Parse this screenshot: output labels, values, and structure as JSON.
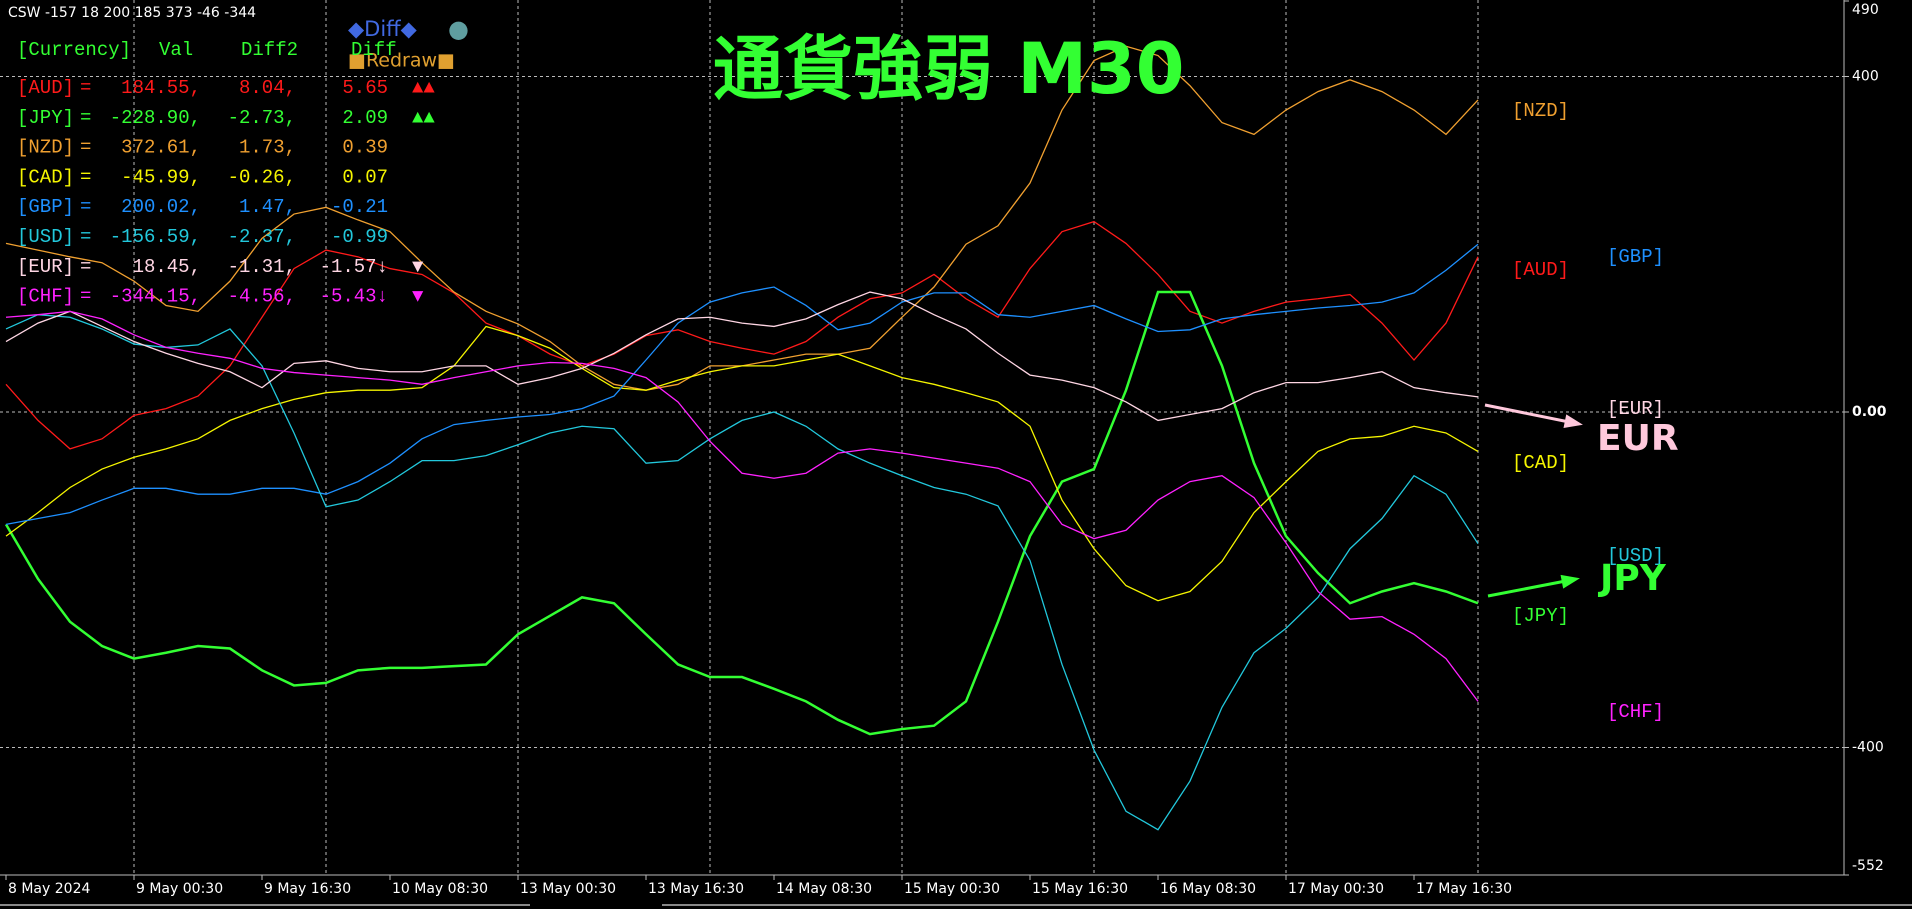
{
  "header": {
    "text": "CSW -157 18 200 185 373 -46 -344"
  },
  "buttons": {
    "diff": "◆Diff◆",
    "circle": "●",
    "redraw": "■Redraw■"
  },
  "table": {
    "columns": [
      "[Currency]",
      "Val",
      "Diff2",
      "Diff"
    ],
    "rows": [
      {
        "eq": "=",
        "val": "184.55,",
        "diff2": "8.04,",
        "diff": "5.65",
        "signal": "▲▲"
      },
      {
        "eq": "=",
        "val": "-228.90,",
        "diff2": "-2.73,",
        "diff": "2.09",
        "signal": "▲▲"
      },
      {
        "eq": "=",
        "val": "372.61,",
        "diff2": "1.73,",
        "diff": "0.39"
      },
      {
        "eq": "=",
        "val": "-45.99,",
        "diff2": "-0.26,",
        "diff": "0.07"
      },
      {
        "eq": "=",
        "val": "200.02,",
        "diff2": "1.47,",
        "diff": "-0.21"
      },
      {
        "eq": "=",
        "val": "-156.59,",
        "diff2": "-2.37,",
        "diff": "-0.99"
      },
      {
        "eq": "=",
        "val": "18.45,",
        "diff2": "-1.31,",
        "diff": "-1.57↓",
        "signal": "▼"
      },
      {
        "eq": "=",
        "val": "-344.15,",
        "diff2": "-4.56,",
        "diff": "-5.43↓",
        "signal": "▼"
      }
    ]
  },
  "chart_data": {
    "type": "line",
    "title": "通貨強弱 M30",
    "categories": [
      "8 May 2024",
      null,
      null,
      null,
      "9 May 00:30",
      null,
      null,
      null,
      "9 May 16:30",
      null,
      null,
      null,
      "10 May 08:30",
      null,
      null,
      null,
      "13 May 00:30",
      null,
      null,
      null,
      "13 May 16:30",
      null,
      null,
      null,
      "14 May 08:30",
      null,
      null,
      null,
      "15 May 00:30",
      null,
      null,
      null,
      "15 May 16:30",
      null,
      null,
      null,
      "16 May 08:30",
      null,
      null,
      null,
      "17 May 00:30",
      null,
      null,
      null,
      "17 May 16:30",
      null,
      null
    ],
    "series": [
      {
        "name": "[AUD]",
        "color": "#ff1a1a",
        "values": [
          33,
          -10,
          -44,
          -32,
          -4,
          4,
          19,
          55,
          113,
          171,
          193,
          185,
          171,
          164,
          142,
          106,
          91,
          69,
          55,
          69,
          91,
          98,
          84,
          76,
          69,
          84,
          113,
          135,
          142,
          164,
          135,
          113,
          171,
          215,
          227,
          201,
          164,
          120,
          106,
          120,
          131,
          135,
          140,
          106,
          62,
          106,
          185
        ]
      },
      {
        "name": "[JPY]",
        "color": "#33ff33",
        "values": [
          -134,
          -199,
          -250,
          -279,
          -294,
          -287,
          -279,
          -282,
          -308,
          -326,
          -323,
          -308,
          -305,
          -305,
          -303,
          -301,
          -265,
          -243,
          -221,
          -228,
          -265,
          -301,
          -316,
          -316,
          -330,
          -345,
          -367,
          -384,
          -378,
          -374,
          -345,
          -250,
          -148,
          -83,
          -68,
          26,
          143,
          143,
          55,
          -61,
          -148,
          -192,
          -228,
          -214,
          -204,
          -214,
          -228
        ]
      },
      {
        "name": "[NZD]",
        "color": "#f0a030",
        "values": [
          201,
          193,
          185,
          178,
          156,
          127,
          120,
          156,
          207,
          236,
          244,
          229,
          215,
          178,
          143,
          120,
          105,
          84,
          55,
          33,
          26,
          33,
          55,
          55,
          62,
          69,
          69,
          76,
          113,
          149,
          200,
          222,
          273,
          360,
          419,
          436,
          425,
          389,
          345,
          331,
          360,
          382,
          396,
          382,
          360,
          331,
          372
        ]
      },
      {
        "name": "[CAD]",
        "color": "#f5f500",
        "values": [
          -148,
          -120,
          -90,
          -68,
          -54,
          -44,
          -32,
          -10,
          4,
          15,
          23,
          26,
          26,
          29,
          55,
          102,
          91,
          76,
          52,
          29,
          26,
          38,
          48,
          55,
          55,
          62,
          69,
          55,
          41,
          33,
          23,
          12,
          -17,
          -105,
          -163,
          -207,
          -225,
          -214,
          -178,
          -120,
          -83,
          -47,
          -32,
          -29,
          -17,
          -25,
          -47
        ]
      },
      {
        "name": "[GBP]",
        "color": "#1e90ff",
        "values": [
          -134,
          -127,
          -120,
          -105,
          -91,
          -91,
          -98,
          -98,
          -91,
          -91,
          -98,
          -83,
          -61,
          -32,
          -15,
          -10,
          -6,
          -3,
          4,
          19,
          62,
          106,
          131,
          142,
          149,
          127,
          98,
          106,
          131,
          142,
          142,
          116,
          113,
          120,
          127,
          111,
          96,
          98,
          111,
          116,
          120,
          124,
          127,
          131,
          142,
          169,
          200
        ]
      },
      {
        "name": "[USD]",
        "color": "#22c8dc",
        "values": [
          99,
          116,
          113,
          99,
          81,
          77,
          80,
          99,
          55,
          -25,
          -113,
          -105,
          -83,
          -58,
          -58,
          -52,
          -39,
          -25,
          -17,
          -20,
          -61,
          -58,
          -32,
          -10,
          0,
          -17,
          -44,
          -61,
          -76,
          -90,
          -98,
          -112,
          -177,
          -301,
          -403,
          -476,
          -498,
          -440,
          -352,
          -287,
          -258,
          -221,
          -163,
          -127,
          -76,
          -98,
          -157
        ]
      },
      {
        "name": "[EUR]",
        "color": "#ffd6e4",
        "values": [
          84,
          106,
          120,
          102,
          84,
          70,
          58,
          48,
          29,
          58,
          61,
          52,
          48,
          48,
          55,
          55,
          33,
          41,
          52,
          70,
          92,
          111,
          113,
          106,
          102,
          111,
          128,
          143,
          135,
          116,
          99,
          70,
          44,
          38,
          29,
          12,
          -10,
          -3,
          4,
          23,
          35,
          35,
          41,
          48,
          29,
          23,
          18
        ]
      },
      {
        "name": "[CHF]",
        "color": "#ff22ff",
        "values": [
          113,
          116,
          120,
          111,
          92,
          77,
          70,
          64,
          52,
          47,
          44,
          41,
          38,
          33,
          41,
          48,
          55,
          59,
          58,
          52,
          41,
          12,
          -35,
          -73,
          -79,
          -73,
          -49,
          -44,
          -49,
          -55,
          -61,
          -67,
          -83,
          -134,
          -151,
          -141,
          -105,
          -83,
          -76,
          -102,
          -156,
          -214,
          -247,
          -244,
          -265,
          -294,
          -345
        ]
      }
    ],
    "ylim": [
      -552,
      490
    ],
    "yticks": [
      490,
      400,
      {
        "value": 0,
        "label": "0.00"
      },
      -400,
      -552
    ],
    "grid": true,
    "annotations": [
      {
        "text": "EUR",
        "color": "#ffc8dc"
      },
      {
        "text": "JPY",
        "color": "#33ff33"
      }
    ]
  }
}
